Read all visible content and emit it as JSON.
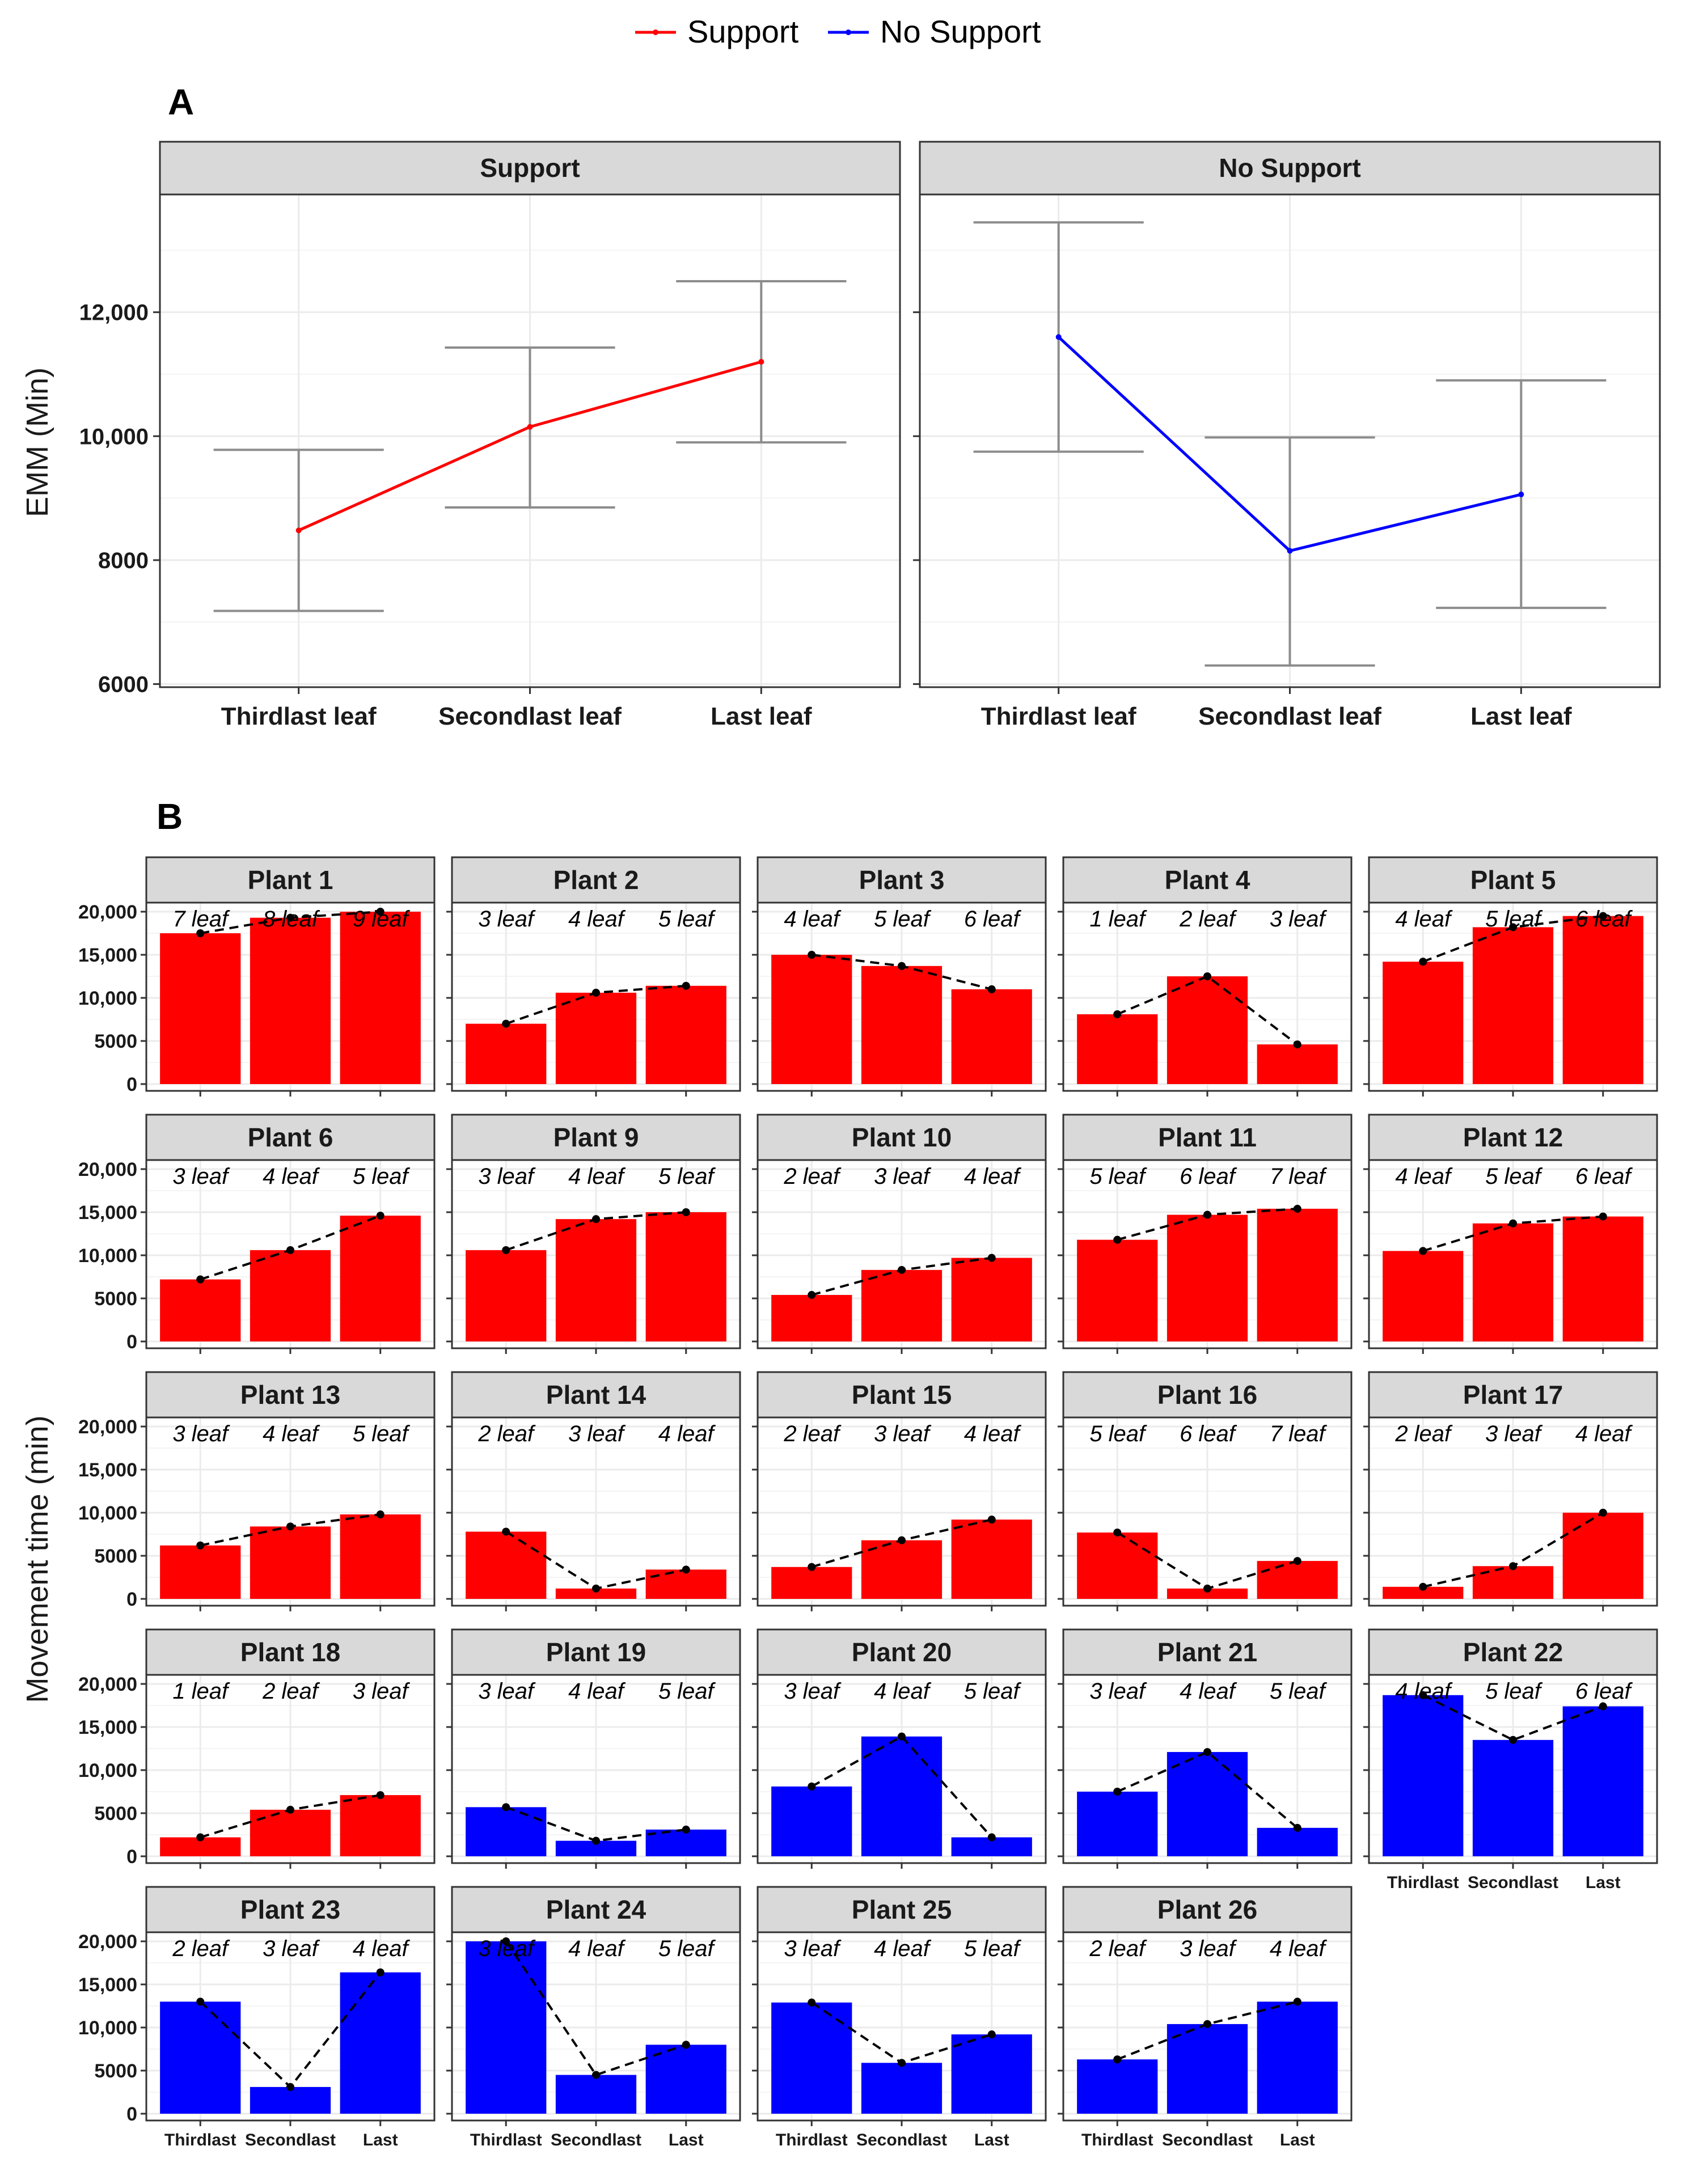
{
  "legend": {
    "items": [
      {
        "label": "Support",
        "color": "#ff0000"
      },
      {
        "label": "No Support",
        "color": "#0000ff"
      }
    ]
  },
  "chart_data": [
    {
      "panel_letter": "A",
      "type": "line",
      "ylabel": "EMM (Min)",
      "ylim": [
        5950,
        13900
      ],
      "yticks": [
        6000,
        8000,
        10000,
        12000
      ],
      "ytick_labels": [
        "6000",
        "8000",
        "10,000",
        "12,000"
      ],
      "categories": [
        "Thirdlast leaf",
        "Secondlast leaf",
        "Last leaf"
      ],
      "grid": true,
      "facets": [
        {
          "name": "Support",
          "color": "#ff0000",
          "values": [
            8480,
            10150,
            11200
          ],
          "lower": [
            7180,
            8850,
            9900
          ],
          "upper": [
            9780,
            11430,
            12500
          ]
        },
        {
          "name": "No Support",
          "color": "#0000ff",
          "values": [
            11600,
            8150,
            9060
          ],
          "lower": [
            9750,
            6300,
            7230
          ],
          "upper": [
            13450,
            9980,
            10900
          ]
        }
      ]
    },
    {
      "panel_letter": "B",
      "type": "bar",
      "ylabel": "Movement time (min)",
      "ylim": [
        0,
        20000
      ],
      "yticks": [
        0,
        5000,
        10000,
        15000,
        20000
      ],
      "ytick_labels": [
        "0",
        "5000",
        "10,000",
        "15,000",
        "20,000"
      ],
      "categories": [
        "Thirdlast",
        "Secondlast",
        "Last"
      ],
      "grid": true,
      "panels": [
        {
          "name": "Plant 1",
          "group": "Support",
          "values": [
            17500,
            19300,
            20000
          ],
          "leaf_labels": [
            "7 leaf",
            "8 leaf",
            "9 leaf"
          ]
        },
        {
          "name": "Plant 2",
          "group": "Support",
          "values": [
            7000,
            10600,
            11400
          ],
          "leaf_labels": [
            "3 leaf",
            "4 leaf",
            "5 leaf"
          ]
        },
        {
          "name": "Plant 3",
          "group": "Support",
          "values": [
            15000,
            13700,
            11000
          ],
          "leaf_labels": [
            "4 leaf",
            "5 leaf",
            "6 leaf"
          ]
        },
        {
          "name": "Plant 4",
          "group": "Support",
          "values": [
            8100,
            12500,
            4600
          ],
          "leaf_labels": [
            "1 leaf",
            "2 leaf",
            "3 leaf"
          ]
        },
        {
          "name": "Plant 5",
          "group": "Support",
          "values": [
            14200,
            18200,
            19500
          ],
          "leaf_labels": [
            "4 leaf",
            "5 leaf",
            "6 leaf"
          ]
        },
        {
          "name": "Plant 6",
          "group": "Support",
          "values": [
            7200,
            10600,
            14600
          ],
          "leaf_labels": [
            "3 leaf",
            "4 leaf",
            "5 leaf"
          ]
        },
        {
          "name": "Plant 9",
          "group": "Support",
          "values": [
            10600,
            14200,
            15000
          ],
          "leaf_labels": [
            "3 leaf",
            "4 leaf",
            "5 leaf"
          ]
        },
        {
          "name": "Plant 10",
          "group": "Support",
          "values": [
            5400,
            8300,
            9700
          ],
          "leaf_labels": [
            "2 leaf",
            "3 leaf",
            "4 leaf"
          ]
        },
        {
          "name": "Plant 11",
          "group": "Support",
          "values": [
            11800,
            14700,
            15400
          ],
          "leaf_labels": [
            "5 leaf",
            "6 leaf",
            "7 leaf"
          ]
        },
        {
          "name": "Plant 12",
          "group": "Support",
          "values": [
            10500,
            13700,
            14500
          ],
          "leaf_labels": [
            "4 leaf",
            "5 leaf",
            "6 leaf"
          ]
        },
        {
          "name": "Plant 13",
          "group": "Support",
          "values": [
            6200,
            8400,
            9800
          ],
          "leaf_labels": [
            "3 leaf",
            "4 leaf",
            "5 leaf"
          ]
        },
        {
          "name": "Plant 14",
          "group": "Support",
          "values": [
            7800,
            1200,
            3400
          ],
          "leaf_labels": [
            "2 leaf",
            "3 leaf",
            "4 leaf"
          ]
        },
        {
          "name": "Plant 15",
          "group": "Support",
          "values": [
            3700,
            6800,
            9200
          ],
          "leaf_labels": [
            "2 leaf",
            "3 leaf",
            "4 leaf"
          ]
        },
        {
          "name": "Plant 16",
          "group": "Support",
          "values": [
            7700,
            1200,
            4400
          ],
          "leaf_labels": [
            "5 leaf",
            "6 leaf",
            "7 leaf"
          ]
        },
        {
          "name": "Plant 17",
          "group": "Support",
          "values": [
            1400,
            3800,
            10000
          ],
          "leaf_labels": [
            "2 leaf",
            "3 leaf",
            "4 leaf"
          ]
        },
        {
          "name": "Plant 18",
          "group": "Support",
          "values": [
            2200,
            5400,
            7100
          ],
          "leaf_labels": [
            "1 leaf",
            "2 leaf",
            "3 leaf"
          ]
        },
        {
          "name": "Plant 19",
          "group": "No Support",
          "values": [
            5700,
            1800,
            3100
          ],
          "leaf_labels": [
            "3 leaf",
            "4 leaf",
            "5 leaf"
          ]
        },
        {
          "name": "Plant 20",
          "group": "No Support",
          "values": [
            8100,
            13900,
            2200
          ],
          "leaf_labels": [
            "3 leaf",
            "4 leaf",
            "5 leaf"
          ]
        },
        {
          "name": "Plant 21",
          "group": "No Support",
          "values": [
            7500,
            12100,
            3300
          ],
          "leaf_labels": [
            "3 leaf",
            "4 leaf",
            "5 leaf"
          ]
        },
        {
          "name": "Plant 22",
          "group": "No Support",
          "values": [
            18700,
            13500,
            17400
          ],
          "leaf_labels": [
            "4 leaf",
            "5 leaf",
            "6 leaf"
          ]
        },
        {
          "name": "Plant 23",
          "group": "No Support",
          "values": [
            13000,
            3100,
            16400
          ],
          "leaf_labels": [
            "2 leaf",
            "3 leaf",
            "4 leaf"
          ]
        },
        {
          "name": "Plant 24",
          "group": "No Support",
          "values": [
            20000,
            4500,
            8000
          ],
          "leaf_labels": [
            "3 leaf",
            "4 leaf",
            "5 leaf"
          ]
        },
        {
          "name": "Plant 25",
          "group": "No Support",
          "values": [
            12900,
            5900,
            9200
          ],
          "leaf_labels": [
            "3 leaf",
            "4 leaf",
            "5 leaf"
          ]
        },
        {
          "name": "Plant 26",
          "group": "No Support",
          "values": [
            6300,
            10400,
            13000
          ],
          "leaf_labels": [
            "2 leaf",
            "3 leaf",
            "4 leaf"
          ]
        }
      ]
    }
  ]
}
